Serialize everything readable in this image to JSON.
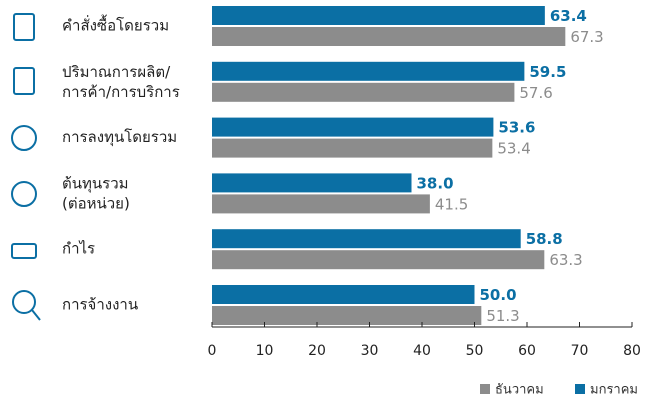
{
  "chart_data": {
    "type": "hbar",
    "categories": [
      "คำสั่งซื้อโดยรวม",
      "ปริมาณการผลิต/\nการค้า/การบริการ",
      "การลงทุนโดยรวม",
      "ต้นทุนรวม\n(ต่อหน่วย)",
      "กำไร",
      "การจ้างงาน"
    ],
    "series": [
      {
        "name": "มกราคม",
        "color": "#0b6fa4",
        "values": [
          63.4,
          59.5,
          53.6,
          38.0,
          58.8,
          50.0
        ],
        "value_labels": [
          "63.4",
          "59.5",
          "53.6",
          "38.0",
          "58.8",
          "50.0"
        ]
      },
      {
        "name": "ธันวาคม",
        "color": "#8c8c8c",
        "values": [
          67.3,
          57.6,
          53.4,
          41.5,
          63.3,
          51.3
        ],
        "value_labels": [
          "67.3",
          "57.6",
          "53.4",
          "41.5",
          "63.3",
          "51.3"
        ]
      }
    ],
    "xlim": [
      0,
      80
    ],
    "xticks": [
      0,
      10,
      20,
      30,
      40,
      50,
      60,
      70,
      80
    ],
    "legend": "bottom-right"
  }
}
